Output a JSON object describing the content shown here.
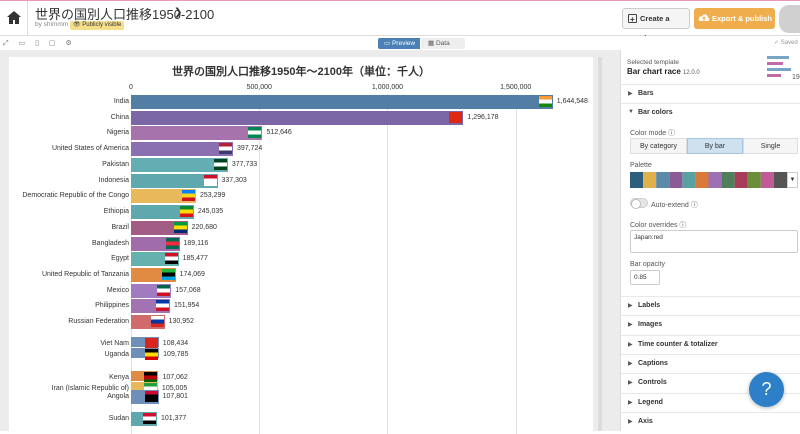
{
  "header": {
    "title": "世界の国別人口推移1950-2100",
    "byline": "by shimmm",
    "visibility": "Publicly visible",
    "create_story": "Create a story",
    "export_publish": "Export & publish"
  },
  "toolbar": {
    "preview": "Preview",
    "data": "Data",
    "saved": "✓ Saved"
  },
  "chart_data": {
    "type": "bar",
    "title": "世界の国別人口推移1950年〜2100年（単位：千人）",
    "xlim": [
      0,
      1700000
    ],
    "ticks": [
      "0",
      "500,000",
      "1,000,000",
      "1,500,000"
    ],
    "tick_values": [
      0,
      500000,
      1000000,
      1500000
    ],
    "categories": [
      "India",
      "China",
      "Nigeria",
      "United States of America",
      "Pakistan",
      "Indonesia",
      "Democratic Republic of the Congo",
      "Ethiopia",
      "Brazil",
      "Bangladesh",
      "Egypt",
      "United Republic of Tanzania",
      "Mexico",
      "Philippines",
      "Russian Federation",
      "Viet Nam",
      "Uganda",
      "Kenya",
      "Iran (Islamic Republic of)",
      "Angola",
      "Sudan"
    ],
    "values": [
      1644548,
      1296178,
      512646,
      397724,
      377733,
      337303,
      253299,
      245035,
      220680,
      189116,
      185477,
      174069,
      157068,
      151954,
      130952,
      108434,
      109785,
      107062,
      105005,
      107801,
      101377
    ],
    "value_labels": [
      "1,644,548",
      "1,296,178",
      "512,646",
      "397,724",
      "377,733",
      "337,303",
      "253,299",
      "245,035",
      "220,680",
      "189,116",
      "185,477",
      "174,069",
      "157,068",
      "151,954",
      "130,952",
      "108,434",
      "109,785",
      "107,062",
      "105,005",
      "107,801",
      "101,377"
    ],
    "colors": [
      "#527ea5",
      "#7b66a6",
      "#a673ad",
      "#8a70b0",
      "#63aeb2",
      "#5fa8ae",
      "#e8b95a",
      "#5fa8ae",
      "#a15d86",
      "#a06ca9",
      "#65b1ae",
      "#e08a42",
      "#a07bc0",
      "#a173b3",
      "#d16a6c",
      "#6e8fb8",
      "#6e8fb8",
      "#e08a42",
      "#e8b95a",
      "#6e8fb8",
      "#5fa8ae"
    ]
  },
  "sidebar": {
    "selected_template_label": "Selected template",
    "template_name": "Bar chart race",
    "template_version": "12.0.0",
    "sections_top": [
      "Bars",
      "Bar colors"
    ],
    "color_mode_label": "Color mode",
    "color_modes": [
      "By category",
      "By bar",
      "Single"
    ],
    "palette_label": "Palette",
    "palette": [
      "#2e5e7e",
      "#e0b04a",
      "#5b8aa8",
      "#8d5a98",
      "#5aa0a0",
      "#d9793a",
      "#9d6fb5",
      "#4e7f5a",
      "#a63d5a",
      "#6b8e3a",
      "#c25a9a",
      "#555555"
    ],
    "auto_extend": "Auto-extend",
    "color_overrides_label": "Color overrides",
    "color_overrides_value": "Japan:red",
    "bar_opacity_label": "Bar opacity",
    "bar_opacity_value": "0.85",
    "sections_bottom": [
      "Labels",
      "Images",
      "Time counter & totalizer",
      "Captions",
      "Controls",
      "Legend",
      "Axis"
    ]
  },
  "help": "?"
}
